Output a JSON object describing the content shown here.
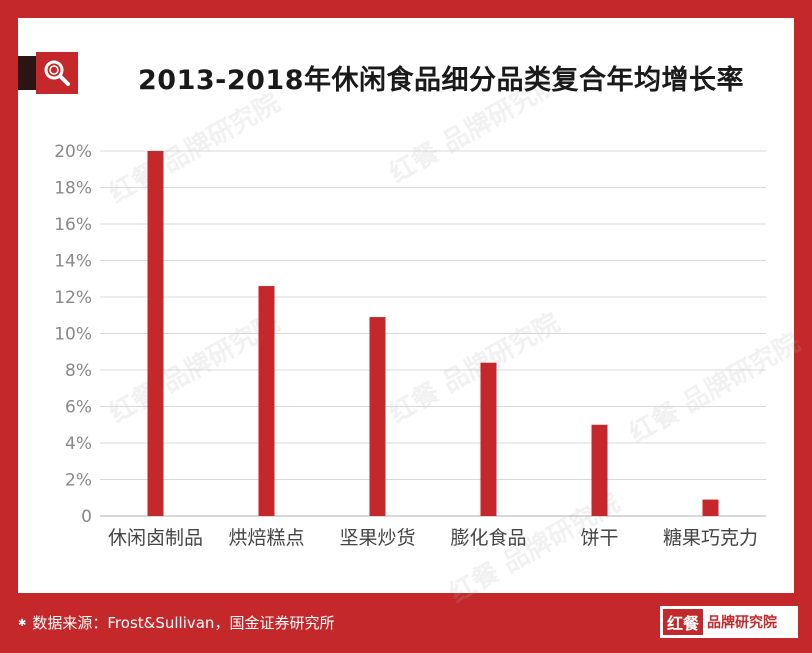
{
  "title": "2013-2018年休闲食品细分品类复合年均增长率",
  "source_note": "数据来源：Frost&Sullivan，国金证券研究所",
  "brand": {
    "mark": "红餐",
    "name": "品牌研究院"
  },
  "watermark_text": "红餐 品牌研究院",
  "colors": {
    "accent": "#c4282a",
    "bar": "#c4282a",
    "grid": "#d8d8d8",
    "axis_text": "#888888",
    "title_bar": "#2a1414"
  },
  "icons": {
    "title": "magnifier-icon"
  },
  "chart_data": {
    "type": "bar",
    "title": "",
    "xlabel": "",
    "ylabel": "",
    "categories": [
      "休闲卤制品",
      "烘焙糕点",
      "坚果炒货",
      "膨化食品",
      "饼干",
      "糖果巧克力"
    ],
    "values": [
      20.0,
      12.6,
      10.9,
      8.4,
      5.0,
      0.9
    ],
    "unit": "%",
    "ylim": [
      0,
      20
    ],
    "yticks": [
      0,
      2,
      4,
      6,
      8,
      10,
      12,
      14,
      16,
      18,
      20
    ],
    "ytick_labels": [
      "0",
      "2%",
      "4%",
      "6%",
      "8%",
      "10%",
      "12%",
      "14%",
      "16%",
      "18%",
      "20%"
    ],
    "grid": true,
    "legend": "none"
  }
}
